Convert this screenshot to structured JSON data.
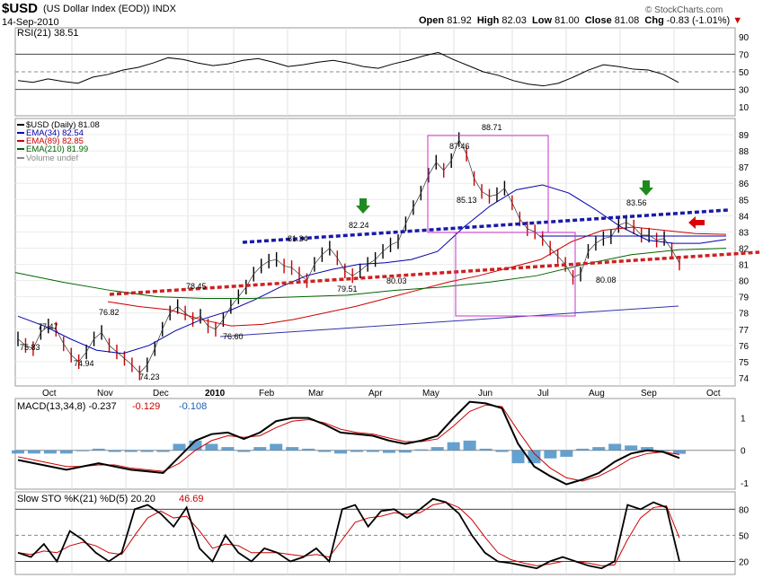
{
  "header": {
    "symbol": "$USD",
    "name": "(US Dollar Index (EOD))",
    "exchange": "INDX",
    "date": "14-Sep-2010",
    "watermark": "© StockCharts.com",
    "open_label": "Open",
    "open": "81.92",
    "high_label": "High",
    "high": "82.03",
    "low_label": "Low",
    "low": "81.00",
    "close_label": "Close",
    "close": "81.08",
    "chg_label": "Chg",
    "chg": "-0.83 (-1.01%)"
  },
  "chart_data": [
    {
      "type": "line",
      "title": "RSI(21)",
      "value_text": "38.51",
      "ylim": [
        0,
        100
      ],
      "ticks": [
        "90",
        "70",
        "50",
        "30",
        "10"
      ],
      "reference_lines": [
        70,
        50,
        30
      ],
      "series": [
        {
          "name": "RSI(21)",
          "values": [
            40,
            38,
            42,
            39,
            37,
            44,
            47,
            52,
            55,
            60,
            66,
            64,
            60,
            57,
            59,
            63,
            65,
            61,
            56,
            58,
            61,
            63,
            60,
            56,
            54,
            59,
            63,
            68,
            72,
            64,
            57,
            50,
            46,
            40,
            36,
            34,
            37,
            44,
            52,
            58,
            56,
            53,
            52,
            47,
            38
          ]
        }
      ]
    },
    {
      "type": "line",
      "title": "$USD (Daily)",
      "value_text": "81.08",
      "ylim": [
        73.5,
        90
      ],
      "ticks": [
        "89",
        "88",
        "87",
        "86",
        "85",
        "84",
        "83",
        "82",
        "81",
        "80",
        "79",
        "78",
        "77",
        "76",
        "75",
        "74"
      ],
      "x_ticks": [
        "Oct",
        "Nov",
        "Dec",
        "2010",
        "Feb",
        "Mar",
        "Apr",
        "May",
        "Jun",
        "Jul",
        "Aug",
        "Sep",
        "Oct"
      ],
      "legend": [
        {
          "label": "$USD (Daily) 81.08",
          "color": "#000000"
        },
        {
          "label": "EMA(34) 82.54",
          "color": "#0000aa"
        },
        {
          "label": "EMA(89) 82.85",
          "color": "#cc0000"
        },
        {
          "label": "EMA(210) 81.99",
          "color": "#006600"
        },
        {
          "label": "Volume undef",
          "color": "#888888"
        }
      ],
      "annotations": [
        "77.47",
        "75.83",
        "74.94",
        "76.82",
        "74.23",
        "78.45",
        "76.60",
        "81.34",
        "79.51",
        "82.24",
        "80.03",
        "87.46",
        "85.13",
        "88.71",
        "83.56",
        "80.08"
      ],
      "series": [
        {
          "name": "$USD",
          "values": [
            76.4,
            76.0,
            75.8,
            76.8,
            77.2,
            77.0,
            76.1,
            75.4,
            75.0,
            75.6,
            76.4,
            76.8,
            76.0,
            75.6,
            75.2,
            74.8,
            74.3,
            74.8,
            75.8,
            77.0,
            78.0,
            78.4,
            78.0,
            77.6,
            77.8,
            77.2,
            77.0,
            77.6,
            78.4,
            79.0,
            79.6,
            80.4,
            80.9,
            81.2,
            81.3,
            80.9,
            80.8,
            80.4,
            80.0,
            81.0,
            81.6,
            82.0,
            81.4,
            80.6,
            80.3,
            80.6,
            81.0,
            81.3,
            81.8,
            82.2,
            82.4,
            83.5,
            84.5,
            85.4,
            86.5,
            87.3,
            86.8,
            87.4,
            88.7,
            87.8,
            86.3,
            85.5,
            85.2,
            85.3,
            85.7,
            84.8,
            83.8,
            83.2,
            83.0,
            82.6,
            82.0,
            81.5,
            81.0,
            80.2,
            80.4,
            81.8,
            82.3,
            82.6,
            82.7,
            83.4,
            83.6,
            83.3,
            82.8,
            82.8,
            82.5,
            82.6,
            81.9,
            81.08
          ]
        },
        {
          "name": "EMA(34)",
          "values": [
            77.8,
            77.2,
            76.4,
            75.7,
            75.5,
            76.0,
            76.9,
            77.6,
            78.1,
            78.8,
            79.6,
            80.3,
            80.7,
            81.0,
            81.1,
            81.3,
            81.8,
            83.3,
            84.6,
            85.6,
            85.9,
            85.4,
            84.4,
            83.3,
            82.5,
            82.3,
            82.3,
            82.54
          ]
        },
        {
          "name": "EMA(89)",
          "values": [
            78.7,
            78.4,
            78.2,
            77.6,
            77.2,
            77.3,
            77.6,
            78.0,
            78.4,
            78.9,
            79.4,
            79.9,
            80.3,
            80.8,
            81.3,
            82.4,
            83.1,
            83.3,
            83.1,
            82.9,
            82.85
          ]
        },
        {
          "name": "EMA(210)",
          "values": [
            80.5,
            79.9,
            79.4,
            79.0,
            78.9,
            78.9,
            79.0,
            79.1,
            79.4,
            79.6,
            79.9,
            80.3,
            81.0,
            81.6,
            81.9,
            81.99
          ]
        }
      ]
    },
    {
      "type": "line",
      "title": "MACD(13,34,8)",
      "value_text": "-0.237",
      "value_text_2": "-0.129",
      "value_text_3": "-0.108",
      "ylim": [
        -1.2,
        1.6
      ],
      "ticks": [
        "1",
        "0",
        "-1"
      ],
      "series": [
        {
          "name": "MACD",
          "values": [
            -0.3,
            -0.4,
            -0.5,
            -0.6,
            -0.5,
            -0.4,
            -0.5,
            -0.6,
            -0.65,
            -0.7,
            -0.2,
            0.3,
            0.5,
            0.55,
            0.35,
            0.55,
            0.9,
            1.0,
            1.0,
            0.8,
            0.55,
            0.5,
            0.45,
            0.3,
            0.2,
            0.3,
            0.45,
            1.0,
            1.5,
            1.45,
            1.3,
            0.2,
            -0.5,
            -0.8,
            -1.05,
            -0.9,
            -0.7,
            -0.35,
            -0.1,
            0.0,
            -0.05,
            -0.24
          ]
        },
        {
          "name": "Signal",
          "values": [
            -0.2,
            -0.3,
            -0.4,
            -0.5,
            -0.5,
            -0.45,
            -0.45,
            -0.55,
            -0.6,
            -0.65,
            -0.4,
            0.0,
            0.3,
            0.45,
            0.4,
            0.45,
            0.7,
            0.9,
            0.95,
            0.85,
            0.65,
            0.55,
            0.5,
            0.38,
            0.27,
            0.27,
            0.35,
            0.75,
            1.2,
            1.4,
            1.35,
            0.6,
            -0.1,
            -0.55,
            -0.85,
            -0.95,
            -0.8,
            -0.55,
            -0.25,
            -0.1,
            -0.05,
            -0.13
          ]
        },
        {
          "name": "Histogram",
          "values": [
            -0.1,
            -0.1,
            -0.1,
            -0.1,
            0,
            0.05,
            -0.05,
            -0.05,
            -0.05,
            -0.05,
            0.2,
            0.3,
            0.2,
            0.1,
            -0.05,
            0.1,
            0.2,
            0.1,
            0.05,
            -0.05,
            -0.1,
            -0.05,
            -0.05,
            -0.08,
            -0.07,
            0.03,
            0.1,
            0.25,
            0.3,
            0.05,
            -0.05,
            -0.4,
            -0.4,
            -0.25,
            -0.2,
            0.05,
            0.1,
            0.2,
            0.15,
            0.1,
            0,
            -0.11
          ]
        }
      ]
    },
    {
      "type": "line",
      "title": "Slow STO %K(21) %D(5)",
      "value_text": "20.20",
      "value_text_2": "46.69",
      "ylim": [
        5,
        100
      ],
      "ticks": [
        "80",
        "50",
        "20"
      ],
      "reference_lines": [
        80,
        50,
        20
      ],
      "series": [
        {
          "name": "%K(21)",
          "values": [
            30,
            25,
            40,
            20,
            55,
            45,
            30,
            20,
            30,
            80,
            85,
            75,
            60,
            82,
            35,
            20,
            50,
            30,
            20,
            35,
            30,
            20,
            25,
            35,
            20,
            80,
            85,
            60,
            78,
            80,
            70,
            80,
            92,
            88,
            75,
            50,
            30,
            20,
            18,
            15,
            12,
            20,
            25,
            20,
            15,
            12,
            20,
            85,
            80,
            88,
            82,
            20
          ]
        },
        {
          "name": "%D(5)",
          "values": [
            30,
            28,
            32,
            30,
            38,
            42,
            38,
            30,
            28,
            50,
            70,
            78,
            70,
            72,
            55,
            35,
            40,
            38,
            30,
            30,
            30,
            28,
            26,
            28,
            25,
            45,
            65,
            70,
            72,
            76,
            74,
            76,
            85,
            88,
            82,
            68,
            48,
            30,
            22,
            18,
            15,
            17,
            20,
            20,
            18,
            15,
            16,
            45,
            70,
            82,
            84,
            47
          ]
        }
      ]
    }
  ]
}
